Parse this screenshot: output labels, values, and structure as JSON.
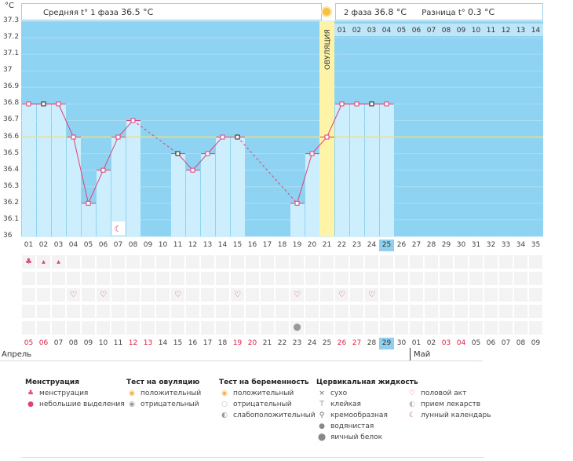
{
  "header": {
    "unit": "°C",
    "phase1_label": "Средняя t° 1 фаза",
    "phase1_value": "36.5 °C",
    "phase2_label": "2 фаза",
    "phase2_value": "36.8 °C",
    "diff_label": "Разница t°",
    "diff_value": "0.3 °C"
  },
  "ovulation_label": "ОВУЛЯЦИЯ",
  "y_ticks": [
    "37.3",
    "37.2",
    "37.1",
    "37",
    "36.9",
    "36.8",
    "36.7",
    "36.6",
    "36.5",
    "36.4",
    "36.3",
    "36.2",
    "36.1",
    "36"
  ],
  "phase2_day_labels": [
    "01",
    "02",
    "03",
    "04",
    "05",
    "06",
    "07",
    "08",
    "09",
    "10",
    "11",
    "12",
    "13",
    "14"
  ],
  "cycle_days": [
    "01",
    "02",
    "03",
    "04",
    "05",
    "06",
    "07",
    "08",
    "09",
    "10",
    "11",
    "12",
    "13",
    "14",
    "15",
    "16",
    "17",
    "18",
    "19",
    "20",
    "21",
    "22",
    "23",
    "24",
    "25",
    "26",
    "27",
    "28",
    "29",
    "30",
    "31",
    "32",
    "33",
    "34",
    "35"
  ],
  "current_cycle_day": "25",
  "dates": [
    "05",
    "06",
    "07",
    "08",
    "09",
    "10",
    "11",
    "12",
    "13",
    "14",
    "15",
    "16",
    "17",
    "18",
    "19",
    "20",
    "21",
    "22",
    "23",
    "24",
    "25",
    "26",
    "27",
    "28",
    "29",
    "30",
    "01",
    "02",
    "03",
    "04",
    "05",
    "06",
    "07",
    "08",
    "09"
  ],
  "red_dates_idx": [
    0,
    1,
    7,
    8,
    14,
    15,
    21,
    22,
    28,
    29
  ],
  "current_date_idx": 24,
  "month_april": "Апрель",
  "month_may": "Май",
  "temps": [
    36.8,
    36.8,
    36.8,
    36.6,
    36.2,
    36.4,
    36.6,
    36.7,
    null,
    null,
    36.5,
    36.4,
    36.5,
    36.6,
    36.6,
    null,
    null,
    null,
    36.2,
    36.5,
    36.6,
    36.8,
    36.8,
    36.8,
    36.8
  ],
  "coverline": 36.6,
  "ovulation_day_idx": 20,
  "colors": {
    "sky": "#8fd3f2",
    "bar": "#cdeefc",
    "ovulation": "#fff3a8",
    "line": "#e0407a",
    "coverline": "#f0e07a"
  },
  "legend": {
    "menstruation": {
      "title": "Менструация",
      "items": [
        "менструация",
        "небольшие выделения"
      ]
    },
    "ovulation_test": {
      "title": "Тест на овуляцию",
      "items": [
        "положительный",
        "отрицательный"
      ]
    },
    "pregnancy_test": {
      "title": "Тест на беременность",
      "items": [
        "положительный",
        "отрицательный",
        "слабоположительный"
      ]
    },
    "cervical": {
      "title": "Цервикальная жидкость",
      "items": [
        "сухо",
        "клейкая",
        "кремообразная",
        "водянистая",
        "яичный белок"
      ]
    },
    "other": {
      "items": [
        "половой акт",
        "прием лекарств",
        "лунный календарь"
      ]
    }
  }
}
